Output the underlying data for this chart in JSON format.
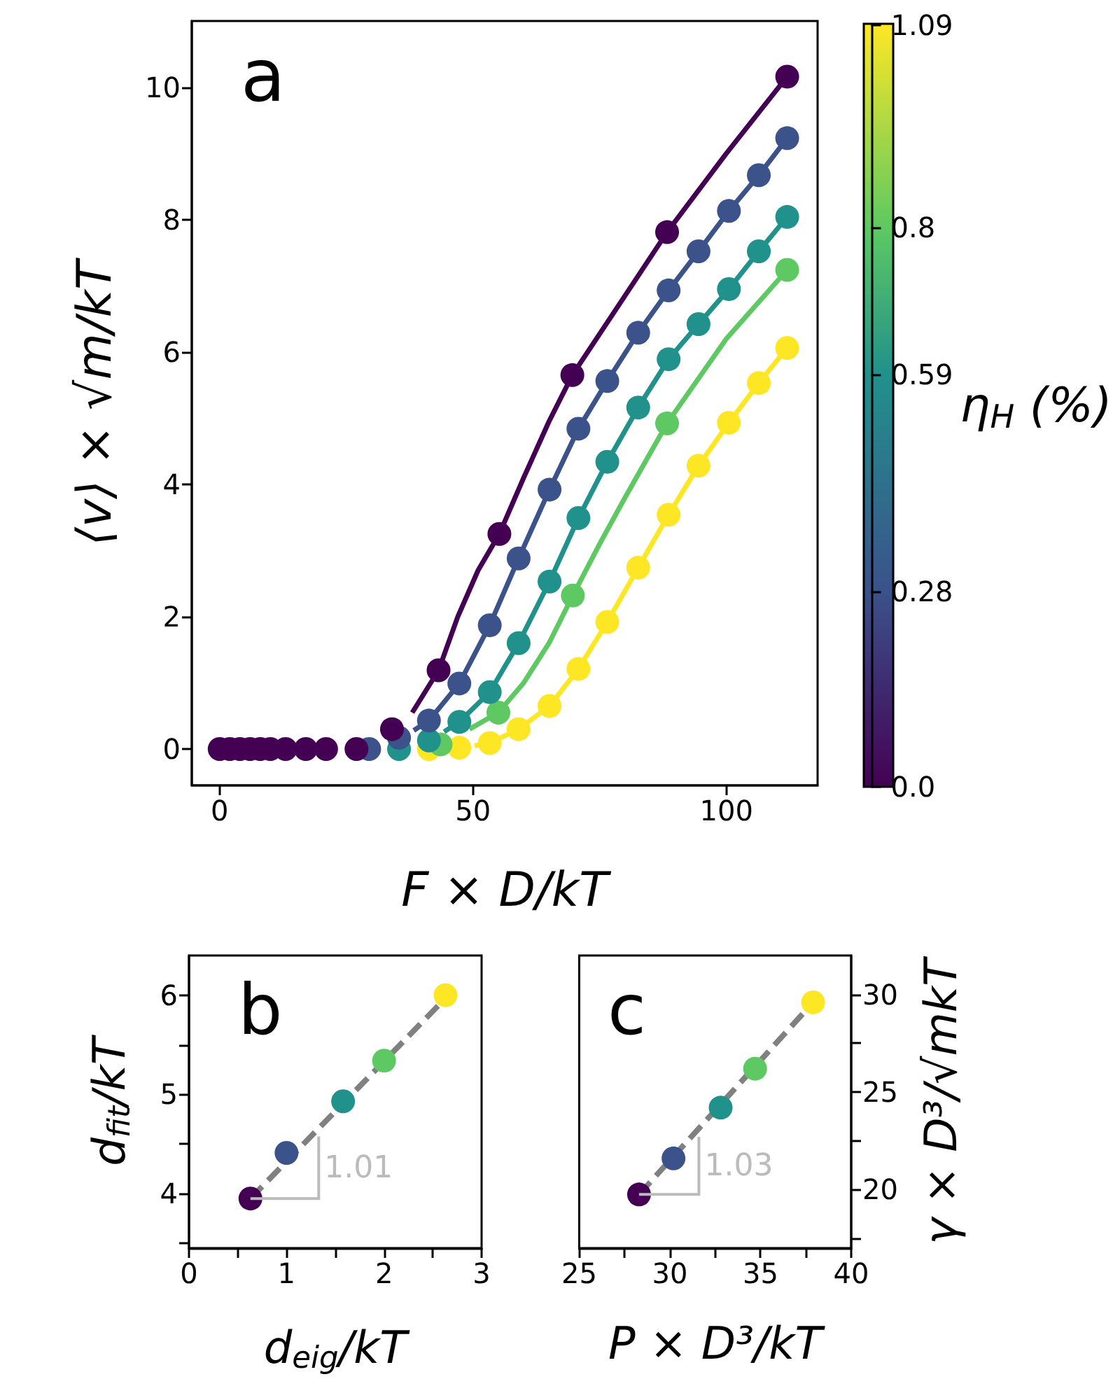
{
  "chart_data": [
    {
      "type": "scatter",
      "xlabel": "F × D/kT",
      "ylabel": "⟨v⟩ × √m/kT",
      "clabel": "η$_{H}$ (%)",
      "annotations": [
        "a"
      ],
      "marker": "circle",
      "xlim": [
        -5.5,
        118
      ],
      "xticks": [
        0,
        50,
        100
      ],
      "ylim": [
        -0.55,
        11
      ],
      "yticks": [
        0,
        2,
        4,
        6,
        8,
        10
      ],
      "clim": [
        0,
        1.09
      ],
      "cticks": [
        {
          "value": 0,
          "label": "0.0"
        },
        0.28,
        0.59,
        0.8,
        1.09
      ],
      "series": [
        {
          "type": "line",
          "marker": "none",
          "color": "#440154",
          "x": [
            38,
            43.2,
            47,
            51,
            55.2,
            60,
            65,
            69.6,
            80,
            88.3,
            100,
            112
          ],
          "values": [
            0.55,
            1.19,
            2.0,
            2.7,
            3.25,
            4.1,
            4.95,
            5.65,
            6.85,
            7.81,
            9.0,
            10.16
          ]
        },
        {
          "type": "line",
          "marker": "none",
          "color": "#3b528b",
          "x": [
            38.3,
            41.3,
            47.3,
            53.3,
            59,
            65.1,
            70.8,
            76.5,
            82.6,
            88.6,
            94.5,
            100.5,
            106.4,
            112
          ],
          "values": [
            0.28,
            0.43,
            0.99,
            1.87,
            2.88,
            3.92,
            4.84,
            5.56,
            6.29,
            6.93,
            7.52,
            8.13,
            8.67,
            9.23
          ]
        },
        {
          "type": "line",
          "marker": "none",
          "color": "#21918c",
          "x": [
            44.3,
            47.3,
            53.3,
            59,
            65.1,
            70.8,
            76.5,
            82.6,
            88.6,
            94.5,
            100.5,
            106.4,
            112
          ],
          "values": [
            0.26,
            0.41,
            0.86,
            1.6,
            2.53,
            3.49,
            4.34,
            5.16,
            5.89,
            6.42,
            6.95,
            7.52,
            8.04
          ]
        },
        {
          "type": "line",
          "marker": "none",
          "color": "#5ec962",
          "x": [
            49.3,
            55,
            60,
            65,
            69.7,
            75,
            80,
            88.3,
            100,
            112
          ],
          "values": [
            0.3,
            0.55,
            1.0,
            1.6,
            2.32,
            3.1,
            3.8,
            4.92,
            6.2,
            7.24
          ]
        },
        {
          "type": "line",
          "marker": "none",
          "color": "#fde725",
          "x": [
            50.3,
            53.3,
            59,
            65.1,
            70.8,
            76.5,
            82.6,
            88.6,
            94.5,
            100.5,
            106.4,
            112
          ],
          "values": [
            0.05,
            0.09,
            0.3,
            0.65,
            1.21,
            1.92,
            2.74,
            3.54,
            4.28,
            4.93,
            5.53,
            6.06
          ]
        },
        {
          "color": "#440154",
          "x": [
            0,
            2,
            4,
            6,
            8,
            10,
            13,
            17,
            21,
            27,
            34,
            43.2,
            55.2,
            69.6,
            88.3,
            112
          ],
          "values": [
            0,
            0,
            0,
            0,
            0,
            0,
            0,
            0,
            0,
            0,
            0.3,
            1.19,
            3.25,
            5.65,
            7.81,
            10.16
          ]
        },
        {
          "color": "#3b528b",
          "x": [
            29.5,
            35.4,
            41.3,
            47.3,
            53.3,
            59,
            65.1,
            70.8,
            76.5,
            82.6,
            88.6,
            94.5,
            100.5,
            106.4,
            112
          ],
          "values": [
            0,
            0.17,
            0.43,
            0.99,
            1.87,
            2.88,
            3.92,
            4.84,
            5.56,
            6.29,
            6.93,
            7.52,
            8.13,
            8.67,
            9.23
          ]
        },
        {
          "color": "#21918c",
          "x": [
            35.4,
            41.3,
            47.3,
            53.3,
            59,
            65.1,
            70.8,
            76.5,
            82.6,
            88.6,
            94.5,
            100.5,
            106.4,
            112
          ],
          "values": [
            0,
            0.13,
            0.41,
            0.86,
            1.6,
            2.53,
            3.49,
            4.34,
            5.16,
            5.89,
            6.42,
            6.95,
            7.52,
            8.04
          ]
        },
        {
          "color": "#5ec962",
          "x": [
            43.6,
            55,
            69.7,
            88.3,
            112
          ],
          "values": [
            0.07,
            0.55,
            2.32,
            4.92,
            7.24
          ]
        },
        {
          "color": "#fde725",
          "x": [
            41.3,
            47.3,
            53.3,
            59,
            65.1,
            70.8,
            76.5,
            82.6,
            88.6,
            94.5,
            100.5,
            106.4,
            112
          ],
          "values": [
            0,
            0.02,
            0.09,
            0.3,
            0.65,
            1.21,
            1.92,
            2.74,
            3.54,
            4.28,
            4.93,
            5.53,
            6.06
          ]
        }
      ]
    },
    {
      "type": "scatter",
      "xlabel": "d$_{eig}$/kT",
      "ylabel": "d$_{fit}$/kT",
      "annotations": [
        "b",
        {
          "text": "1.01",
          "x": 1.33,
          "y": 4.66
        }
      ],
      "marker": "circle",
      "xlim": [
        0,
        3
      ],
      "xticks": [
        0,
        {
          "value": 0.5,
          "label": null
        },
        1,
        {
          "value": 1.5,
          "label": null
        },
        2,
        {
          "value": 2.5,
          "label": null
        },
        3
      ],
      "ylim": [
        3.45,
        6.4
      ],
      "yticks": [
        {
          "value": 3.5,
          "label": null
        },
        4,
        {
          "value": 4.5,
          "label": null
        },
        5,
        {
          "value": 5.5,
          "label": null
        },
        6
      ],
      "series": [
        {
          "type": "line",
          "marker": "none",
          "line_style": "dashed",
          "color": "#808080",
          "x": [
            0.63,
            2.63
          ],
          "values": [
            3.95,
            5.97
          ]
        },
        {
          "x": [
            0.63,
            1.0,
            1.58,
            2.0,
            2.63
          ],
          "values": [
            3.95,
            4.41,
            4.93,
            5.34,
            6.0
          ],
          "colors": [
            "#440154",
            "#3b528b",
            "#21918c",
            "#5ec962",
            "#fde725"
          ]
        }
      ]
    },
    {
      "type": "scatter",
      "xlabel": "P × D³/kT",
      "ylabel": "γ × D³/√mkT",
      "annotations": [
        "c",
        {
          "text": "1.03",
          "x": 31.6,
          "y": 23.14
        }
      ],
      "marker": "circle",
      "xlim": [
        25,
        40
      ],
      "xticks": [
        25,
        {
          "value": 27.5,
          "label": null
        },
        30,
        {
          "value": 32.5,
          "label": null
        },
        35,
        {
          "value": 37.5,
          "label": null
        },
        40
      ],
      "ylim": [
        17,
        32
      ],
      "yticks": [
        {
          "value": 17.5,
          "label": null
        },
        20,
        {
          "value": 22.5,
          "label": null
        },
        25,
        {
          "value": 27.5,
          "label": null
        },
        30
      ],
      "series": [
        {
          "type": "line",
          "marker": "none",
          "line_style": "dashed",
          "color": "#808080",
          "x": [
            28.3,
            37.9
          ],
          "values": [
            19.75,
            29.6
          ]
        },
        {
          "x": [
            28.3,
            30.2,
            32.8,
            34.7,
            37.9
          ],
          "values": [
            19.75,
            21.6,
            24.2,
            26.2,
            29.6
          ],
          "colors": [
            "#440154",
            "#3b528b",
            "#21918c",
            "#5ec962",
            "#fde725"
          ]
        }
      ]
    }
  ]
}
